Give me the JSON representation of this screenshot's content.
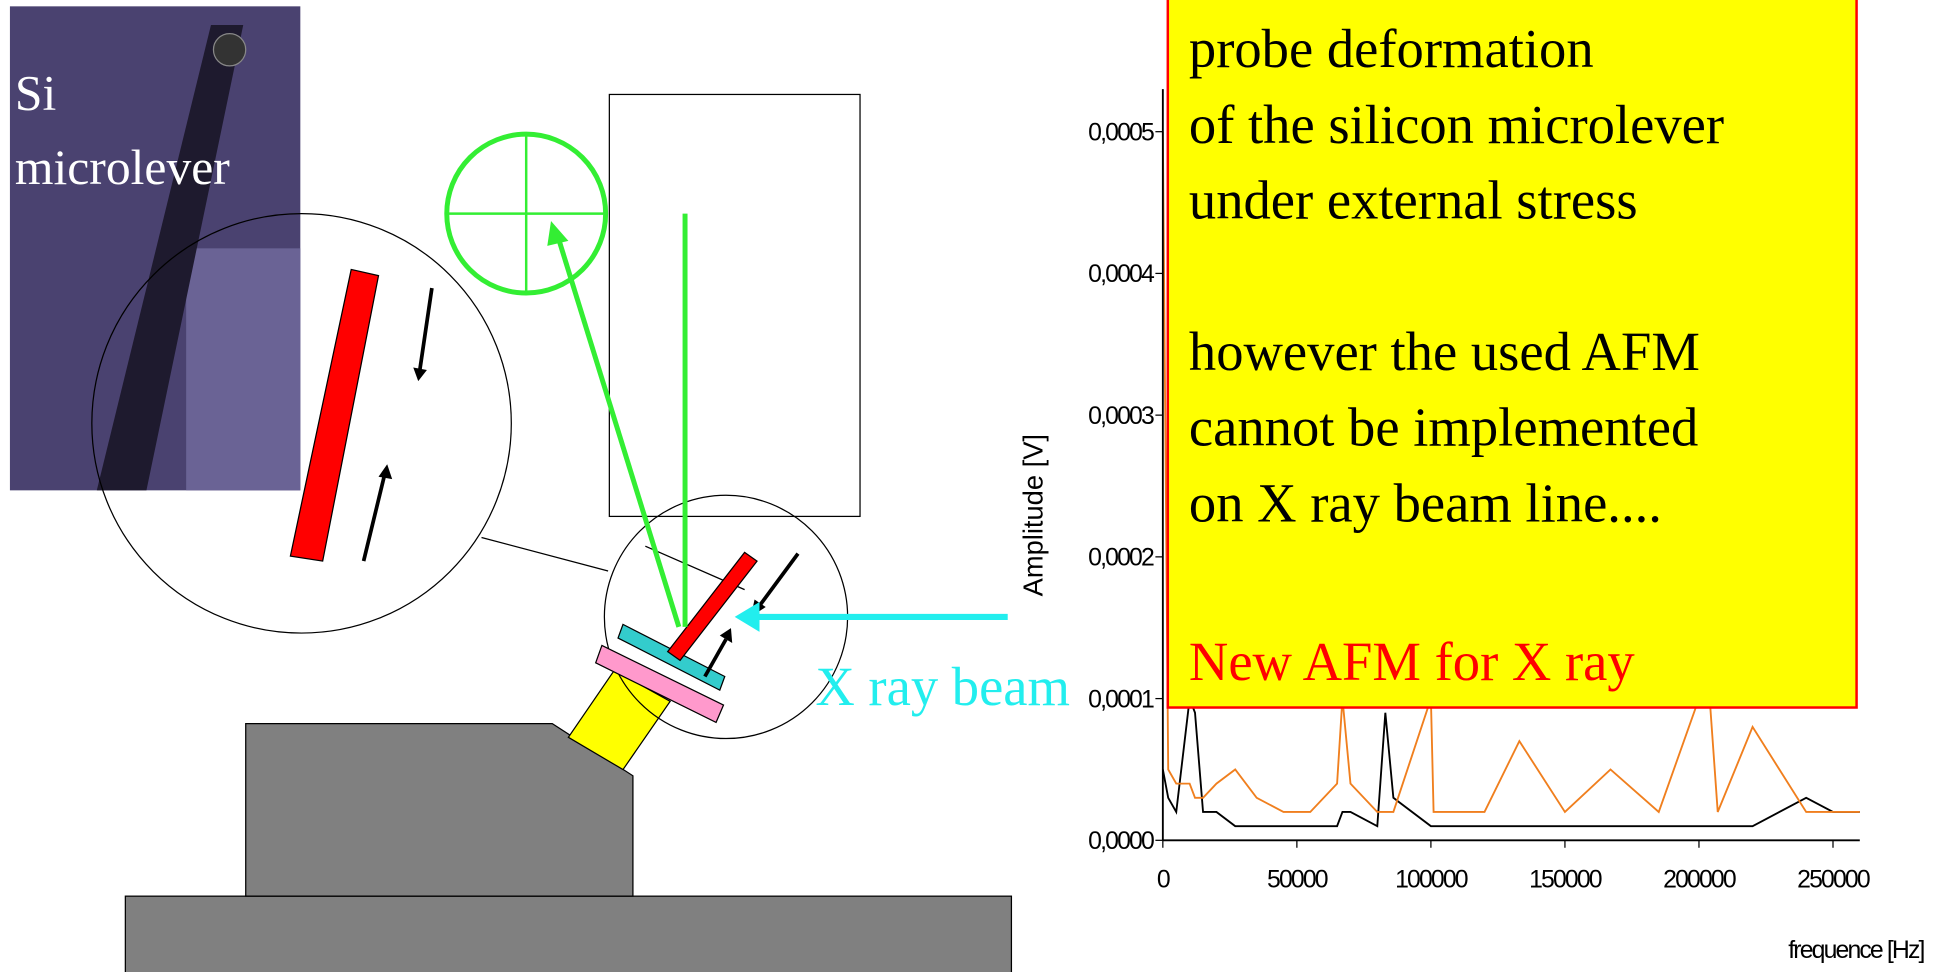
{
  "photo_label": {
    "line1": "Si",
    "line2": "microlever"
  },
  "beam_label": "X ray beam",
  "note": {
    "lines": [
      "probe deformation",
      "of the silicon microlever",
      "under external stress",
      "",
      "however the used AFM",
      "cannot be implemented",
      "on  X ray beam line...."
    ],
    "highlight": "New AFM for X ray"
  },
  "chart_data": {
    "type": "line",
    "x_label": "frequence [Hz]",
    "y_label": "Amplitude [V]",
    "x": [
      0,
      2000,
      5000,
      10000,
      12000,
      15000,
      20000,
      27000,
      35000,
      45000,
      55000,
      65000,
      67000,
      70000,
      80000,
      83000,
      86000,
      100000,
      101000,
      120000,
      133000,
      150000,
      167000,
      185000,
      200000,
      204000,
      207000,
      220000,
      240000,
      250000,
      260000
    ],
    "series": [
      {
        "color": "#000000",
        "values": [
          5e-05,
          3e-05,
          2e-05,
          0.0001,
          9e-05,
          2e-05,
          2e-05,
          1e-05,
          1e-05,
          1e-05,
          1e-05,
          1e-05,
          2e-05,
          2e-05,
          1e-05,
          9e-05,
          3e-05,
          1e-05,
          1e-05,
          1e-05,
          1e-05,
          1e-05,
          1e-05,
          1e-05,
          1e-05,
          1e-05,
          1e-05,
          1e-05,
          3e-05,
          2e-05,
          2e-05
        ]
      },
      {
        "color": "#f07f1e",
        "values": [
          0.0005,
          5e-05,
          4e-05,
          4e-05,
          3e-05,
          3e-05,
          4e-05,
          5e-05,
          3e-05,
          2e-05,
          2e-05,
          4e-05,
          0.0001,
          4e-05,
          2e-05,
          2e-05,
          2e-05,
          0.0001,
          2e-05,
          2e-05,
          7e-05,
          2e-05,
          5e-05,
          2e-05,
          0.0001,
          0.0001,
          2e-05,
          8e-05,
          2e-05,
          2e-05,
          2e-05
        ]
      }
    ],
    "xlim": [
      0,
      260000
    ],
    "ylim": [
      0,
      0.00053
    ],
    "xticks": [
      0,
      50000,
      100000,
      150000,
      200000,
      250000
    ],
    "yticks": [
      {
        "value": 0,
        "label": "0,0000"
      },
      {
        "value": 0.0001,
        "label": "0,0001"
      },
      {
        "value": 0.0002,
        "label": "0,0002"
      },
      {
        "value": 0.0003,
        "label": "0,0003"
      },
      {
        "value": 0.0004,
        "label": "0,0004"
      },
      {
        "value": 0.0005,
        "label": "0,0005"
      }
    ]
  }
}
